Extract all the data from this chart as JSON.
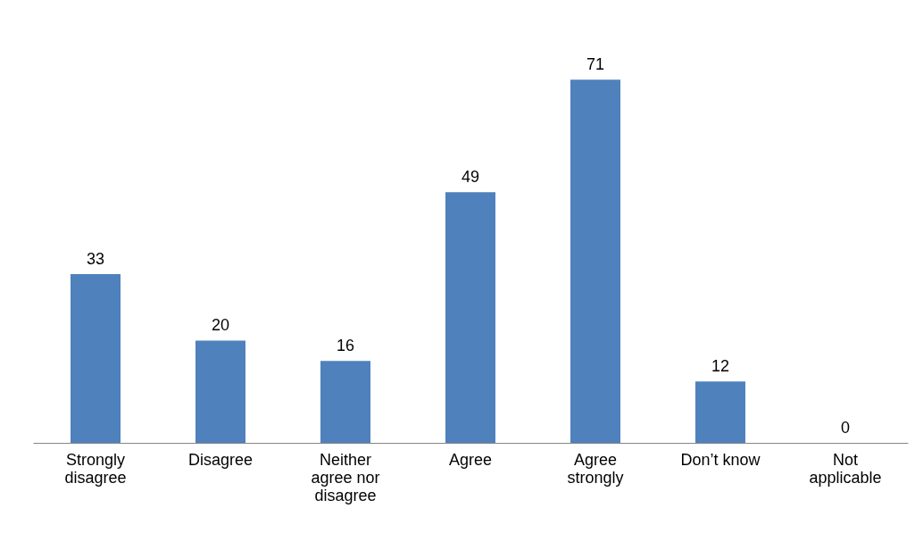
{
  "chart_data": {
    "type": "bar",
    "categories": [
      "Strongly disagree",
      "Disagree",
      "Neither agree nor disagree",
      "Agree",
      "Agree strongly",
      "Don’t know",
      "Not applicable"
    ],
    "values": [
      33,
      20,
      16,
      49,
      71,
      12,
      0
    ],
    "color": "#4f81bd",
    "data_labels": true
  }
}
